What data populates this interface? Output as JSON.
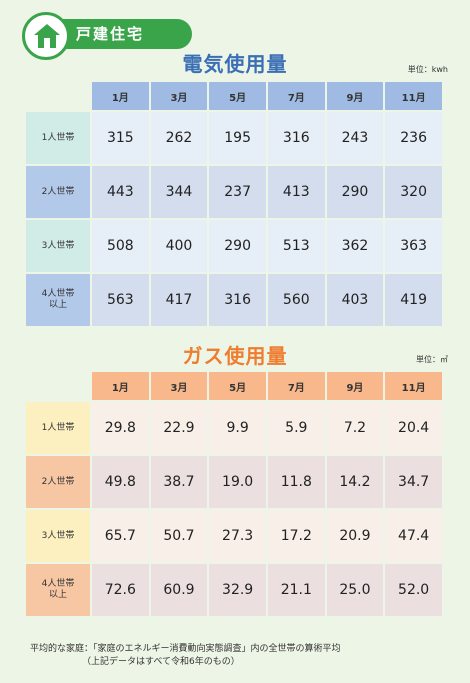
{
  "badge": {
    "label": "戸建住宅",
    "icon": "house-icon"
  },
  "months": [
    "1月",
    "3月",
    "5月",
    "7月",
    "9月",
    "11月"
  ],
  "electric": {
    "title": "電気使用量",
    "unit": "単位：kwh",
    "title_color": "#3b6fb5",
    "rows": [
      {
        "label": [
          "1人世帯"
        ],
        "values": [
          "315",
          "262",
          "195",
          "316",
          "243",
          "236"
        ]
      },
      {
        "label": [
          "2人世帯"
        ],
        "values": [
          "443",
          "344",
          "237",
          "413",
          "290",
          "320"
        ]
      },
      {
        "label": [
          "3人世帯"
        ],
        "values": [
          "508",
          "400",
          "290",
          "513",
          "362",
          "363"
        ]
      },
      {
        "label": [
          "4人世帯",
          "以上"
        ],
        "values": [
          "563",
          "417",
          "316",
          "560",
          "403",
          "419"
        ]
      }
    ]
  },
  "gas": {
    "title": "ガス使用量",
    "unit": "単位：㎥",
    "title_color": "#ee7d2f",
    "rows": [
      {
        "label": [
          "1人世帯"
        ],
        "values": [
          "29.8",
          "22.9",
          "9.9",
          "5.9",
          "7.2",
          "20.4"
        ]
      },
      {
        "label": [
          "2人世帯"
        ],
        "values": [
          "49.8",
          "38.7",
          "19.0",
          "11.8",
          "14.2",
          "34.7"
        ]
      },
      {
        "label": [
          "3人世帯"
        ],
        "values": [
          "65.7",
          "50.7",
          "27.3",
          "17.2",
          "20.9",
          "47.4"
        ]
      },
      {
        "label": [
          "4人世帯",
          "以上"
        ],
        "values": [
          "72.6",
          "60.9",
          "32.9",
          "21.1",
          "25.0",
          "52.0"
        ]
      }
    ]
  },
  "footer": {
    "line1": "平均的な家庭：「家庭のエネルギー消費動向実態調査」内の全世帯の算術平均",
    "line2": "（上記データはすべて令和6年のもの）"
  }
}
